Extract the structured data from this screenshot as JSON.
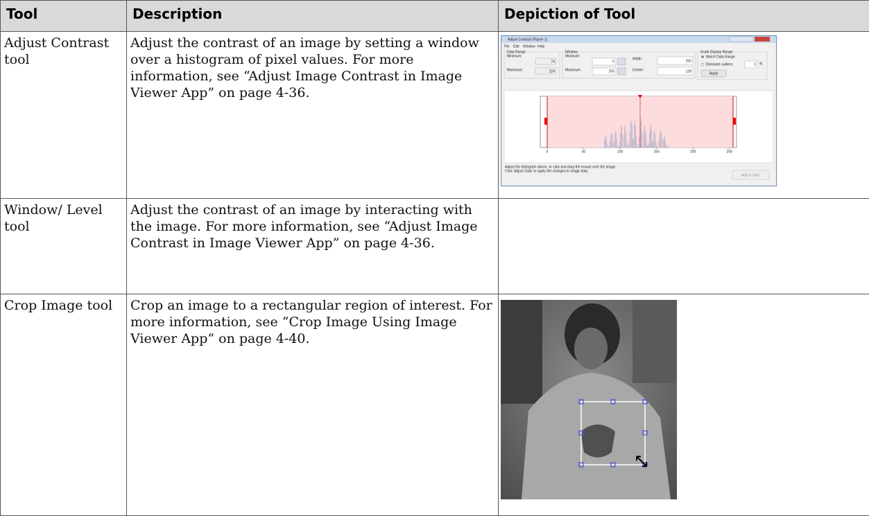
{
  "table": {
    "headers": [
      "Tool",
      "Description",
      "Depiction of Tool"
    ],
    "rows": [
      [
        "Adjust Contrast tool",
        "Adjust the contrast of an image by setting a window over a histogram of pixel values. For more information, see “Adjust Image Contrast in Image Viewer App” on page 4-36."
      ],
      [
        "Window/ Level tool",
        "Adjust the contrast of an image by interacting with the image. For more information, see “Adjust Image Contrast in Image Viewer App” on page 4-36."
      ],
      [
        "Crop Image tool",
        "Crop an image to a rectangular region of interest. For more information, see “Crop Image Using Image Viewer App” on page 4-40."
      ]
    ]
  },
  "adjust_contrast_window": {
    "title": "Adjust Contrast (Figure 1)",
    "menu": [
      "File",
      "Edit",
      "Window",
      "Help"
    ],
    "data_range": {
      "label": "Data Range",
      "minimum_label": "Minimum:",
      "minimum": "74",
      "maximum_label": "Maximum:",
      "maximum": "224"
    },
    "window": {
      "label": "Window",
      "minimum_label": "Minimum:",
      "minimum": "0",
      "maximum_label": "Maximum:",
      "maximum": "255",
      "width_label": "Width:",
      "width": "255",
      "center_label": "Center:",
      "center": "128"
    },
    "scale_display_range": {
      "label": "Scale Display Range",
      "match": "Match Data Range",
      "eliminate": "Eliminate outliers:",
      "percent": "2",
      "percent_sign": "%",
      "apply": "Apply"
    },
    "axis_ticks": [
      0,
      50,
      100,
      150,
      200,
      250
    ],
    "status": [
      "Adjust the histogram above, or click and drag the mouse over the image.",
      "Click 'Adjust Data' to apply the changes to image data."
    ],
    "adjust_data": "Adjust Data"
  }
}
